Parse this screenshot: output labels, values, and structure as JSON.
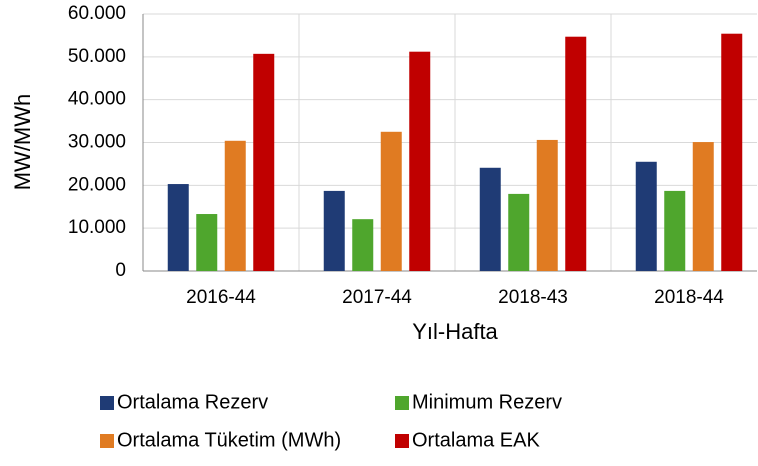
{
  "chart_data": {
    "type": "bar",
    "categories": [
      "2016-44",
      "2017-44",
      "2018-43",
      "2018-44"
    ],
    "series": [
      {
        "name": "Ortalama Rezerv",
        "color": "#1f3b75",
        "values": [
          20300,
          18700,
          24100,
          25500
        ]
      },
      {
        "name": "Minimum Rezerv",
        "color": "#4fa62d",
        "values": [
          13300,
          12100,
          18000,
          18700
        ]
      },
      {
        "name": "Ortalama Tüketim (MWh)",
        "color": "#e07b22",
        "values": [
          30400,
          32500,
          30600,
          30100
        ]
      },
      {
        "name": "Ortalama EAK",
        "color": "#c00000",
        "values": [
          50700,
          51200,
          54700,
          55400
        ]
      }
    ],
    "ylim": [
      0,
      60000
    ],
    "yticks": [
      0,
      {
        "value": 10000,
        "label": "10.000"
      },
      {
        "value": 20000,
        "label": "20.000"
      },
      {
        "value": 30000,
        "label": "30.000"
      },
      {
        "value": 40000,
        "label": "40.000"
      },
      {
        "value": 50000,
        "label": "50.000"
      },
      {
        "value": 60000,
        "label": "60.000"
      }
    ],
    "ylabel": "MW/MWh",
    "xlabel": "Yıl-Hafta",
    "grid": true
  }
}
